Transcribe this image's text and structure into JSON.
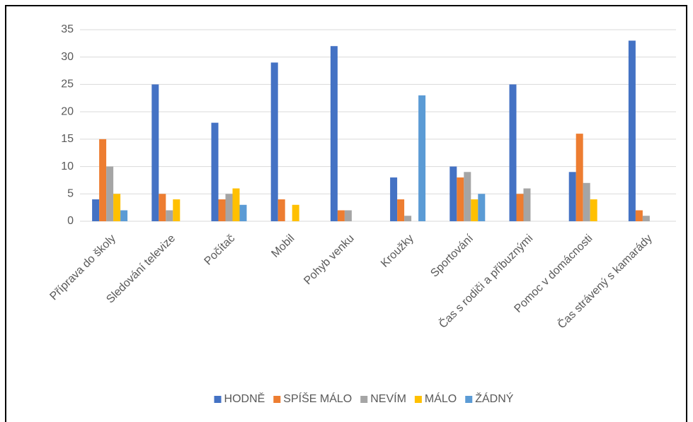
{
  "chart_data": {
    "type": "bar",
    "categories": [
      "Příprava do školy",
      "Sledování televize",
      "Počítač",
      "Mobil",
      "Pohyb venku",
      "Kroužky",
      "Sportování",
      "Čas s rodiči a příbuznými",
      "Pomoc v domácnosti",
      "Čas strávený s kamarády"
    ],
    "series": [
      {
        "name": "HODNĚ",
        "color": "#4472c4",
        "values": [
          4,
          25,
          18,
          29,
          32,
          8,
          10,
          25,
          9,
          33
        ]
      },
      {
        "name": "SPÍŠE MÁLO",
        "color": "#ed7d31",
        "values": [
          15,
          5,
          4,
          4,
          2,
          4,
          8,
          5,
          16,
          2
        ]
      },
      {
        "name": "NEVÍM",
        "color": "#a5a5a5",
        "values": [
          10,
          2,
          5,
          0,
          2,
          1,
          9,
          6,
          7,
          1
        ]
      },
      {
        "name": "MÁLO",
        "color": "#ffc000",
        "values": [
          5,
          4,
          6,
          3,
          0,
          0,
          4,
          0,
          4,
          0
        ]
      },
      {
        "name": "ŽÁDNÝ",
        "color": "#5b9bd5",
        "values": [
          2,
          0,
          3,
          0,
          0,
          23,
          5,
          0,
          0,
          0
        ]
      }
    ],
    "ylim": [
      0,
      35
    ],
    "yticks": [
      0,
      5,
      10,
      15,
      20,
      25,
      30,
      35
    ],
    "grid": true,
    "legend": "bottom"
  }
}
